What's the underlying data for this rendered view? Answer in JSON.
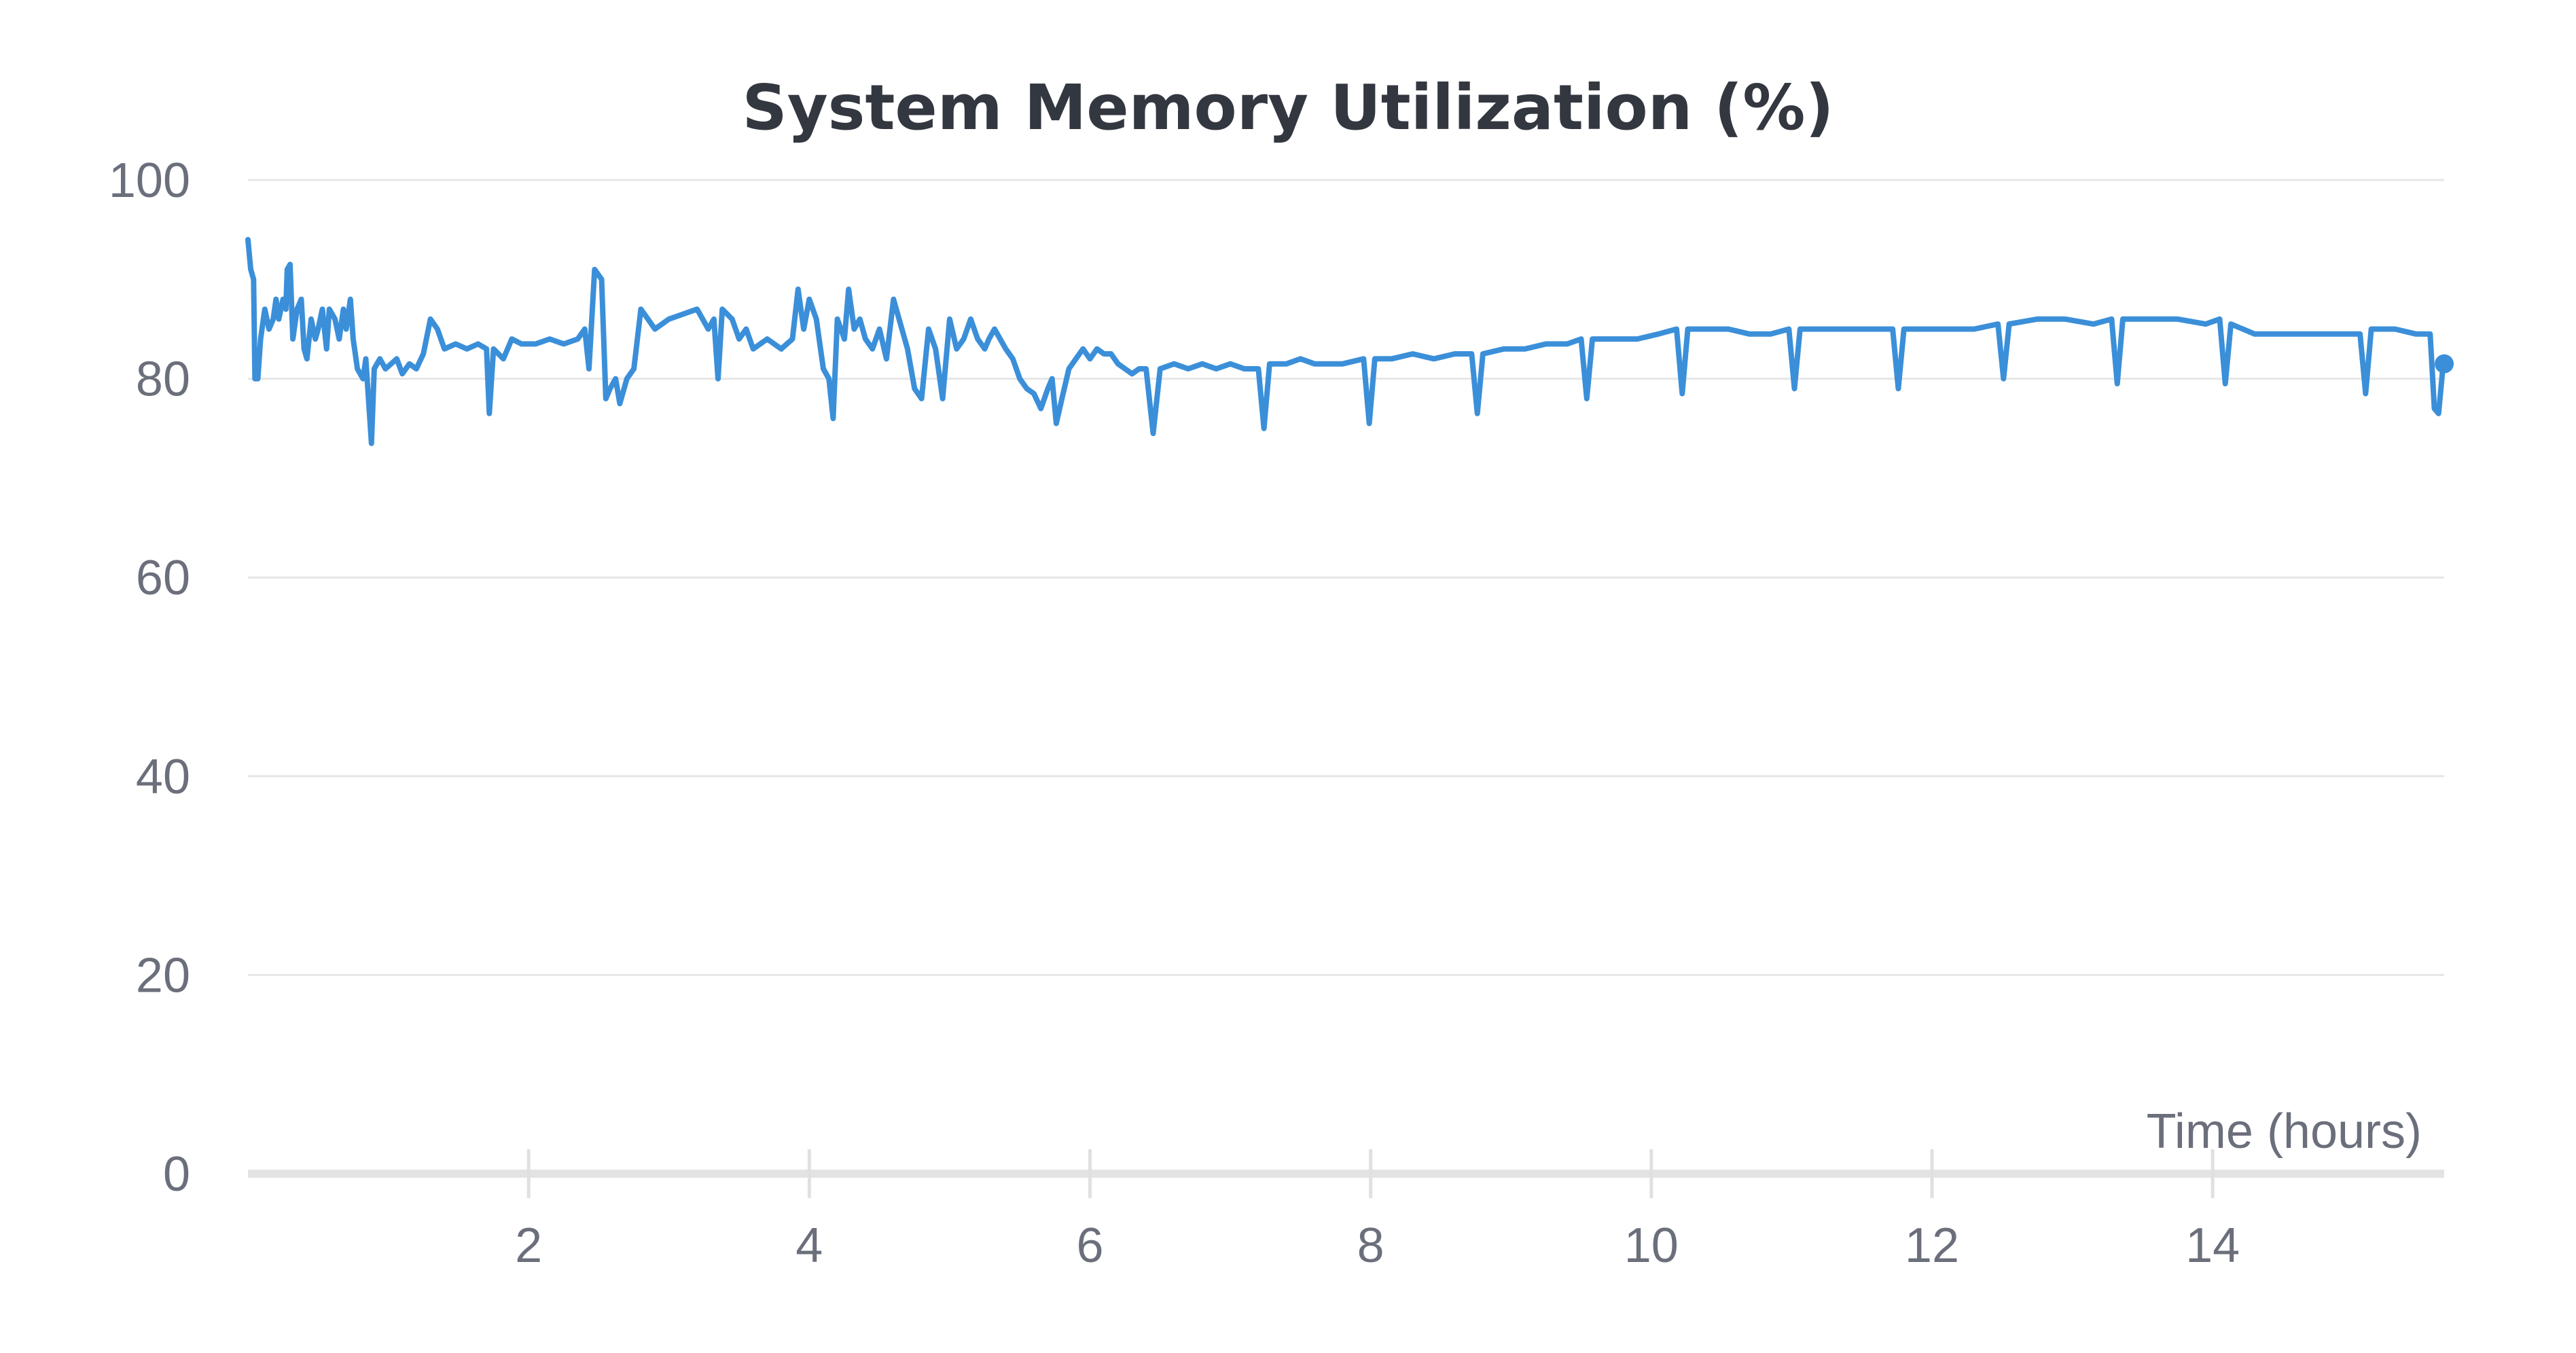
{
  "chart_data": {
    "type": "line",
    "title": "System Memory Utilization (%)",
    "xlabel": "Time (hours)",
    "ylabel": "",
    "xlim": [
      0,
      15.65
    ],
    "ylim": [
      0,
      100
    ],
    "x_ticks": [
      2,
      4,
      6,
      8,
      10,
      12,
      14
    ],
    "y_ticks": [
      0,
      20,
      40,
      60,
      80,
      100
    ],
    "grid": "horizontal",
    "legend": "none",
    "series": [
      {
        "color": "#3b8fd9",
        "points": [
          [
            0.0,
            94
          ],
          [
            0.02,
            91
          ],
          [
            0.04,
            90
          ],
          [
            0.05,
            80
          ],
          [
            0.07,
            80
          ],
          [
            0.09,
            84
          ],
          [
            0.12,
            87
          ],
          [
            0.15,
            85
          ],
          [
            0.18,
            86
          ],
          [
            0.2,
            88
          ],
          [
            0.22,
            86
          ],
          [
            0.25,
            88
          ],
          [
            0.27,
            87
          ],
          [
            0.28,
            91
          ],
          [
            0.3,
            91.5
          ],
          [
            0.32,
            84
          ],
          [
            0.35,
            87
          ],
          [
            0.38,
            88
          ],
          [
            0.4,
            83
          ],
          [
            0.42,
            82
          ],
          [
            0.45,
            86
          ],
          [
            0.48,
            84
          ],
          [
            0.5,
            85
          ],
          [
            0.53,
            87
          ],
          [
            0.56,
            83
          ],
          [
            0.58,
            87
          ],
          [
            0.62,
            86
          ],
          [
            0.65,
            84
          ],
          [
            0.68,
            87
          ],
          [
            0.7,
            85
          ],
          [
            0.73,
            88
          ],
          [
            0.75,
            84
          ],
          [
            0.78,
            81
          ],
          [
            0.82,
            80
          ],
          [
            0.84,
            82
          ],
          [
            0.88,
            73.5
          ],
          [
            0.9,
            81
          ],
          [
            0.94,
            82
          ],
          [
            0.98,
            81
          ],
          [
            1.02,
            81.5
          ],
          [
            1.06,
            82
          ],
          [
            1.1,
            80.5
          ],
          [
            1.15,
            81.5
          ],
          [
            1.2,
            81
          ],
          [
            1.25,
            82.5
          ],
          [
            1.3,
            86
          ],
          [
            1.35,
            85
          ],
          [
            1.4,
            83
          ],
          [
            1.48,
            83.5
          ],
          [
            1.56,
            83
          ],
          [
            1.64,
            83.5
          ],
          [
            1.7,
            83
          ],
          [
            1.72,
            76.5
          ],
          [
            1.75,
            83
          ],
          [
            1.82,
            82
          ],
          [
            1.88,
            84
          ],
          [
            1.95,
            83.5
          ],
          [
            2.05,
            83.5
          ],
          [
            2.15,
            84
          ],
          [
            2.25,
            83.5
          ],
          [
            2.35,
            84
          ],
          [
            2.4,
            85
          ],
          [
            2.43,
            81
          ],
          [
            2.47,
            91
          ],
          [
            2.52,
            90
          ],
          [
            2.55,
            78
          ],
          [
            2.58,
            79
          ],
          [
            2.62,
            80
          ],
          [
            2.65,
            77.5
          ],
          [
            2.7,
            80
          ],
          [
            2.75,
            81
          ],
          [
            2.8,
            87
          ],
          [
            2.85,
            86
          ],
          [
            2.9,
            85
          ],
          [
            3.0,
            86
          ],
          [
            3.1,
            86.5
          ],
          [
            3.2,
            87
          ],
          [
            3.28,
            85
          ],
          [
            3.32,
            86
          ],
          [
            3.35,
            80
          ],
          [
            3.38,
            87
          ],
          [
            3.45,
            86
          ],
          [
            3.5,
            84
          ],
          [
            3.55,
            85
          ],
          [
            3.6,
            83
          ],
          [
            3.7,
            84
          ],
          [
            3.8,
            83
          ],
          [
            3.88,
            84
          ],
          [
            3.92,
            89
          ],
          [
            3.96,
            85
          ],
          [
            4.0,
            88
          ],
          [
            4.05,
            86
          ],
          [
            4.1,
            81
          ],
          [
            4.14,
            80
          ],
          [
            4.17,
            76
          ],
          [
            4.2,
            86
          ],
          [
            4.25,
            84
          ],
          [
            4.28,
            89
          ],
          [
            4.32,
            85
          ],
          [
            4.36,
            86
          ],
          [
            4.4,
            84
          ],
          [
            4.45,
            83
          ],
          [
            4.5,
            85
          ],
          [
            4.55,
            82
          ],
          [
            4.6,
            88
          ],
          [
            4.64,
            86
          ],
          [
            4.7,
            83
          ],
          [
            4.75,
            79
          ],
          [
            4.8,
            78
          ],
          [
            4.85,
            85
          ],
          [
            4.9,
            83
          ],
          [
            4.95,
            78
          ],
          [
            5.0,
            86
          ],
          [
            5.05,
            83
          ],
          [
            5.1,
            84
          ],
          [
            5.15,
            86
          ],
          [
            5.2,
            84
          ],
          [
            5.25,
            83
          ],
          [
            5.28,
            84
          ],
          [
            5.32,
            85
          ],
          [
            5.36,
            84
          ],
          [
            5.4,
            83
          ],
          [
            5.45,
            82
          ],
          [
            5.5,
            80
          ],
          [
            5.55,
            79
          ],
          [
            5.6,
            78.5
          ],
          [
            5.65,
            77
          ],
          [
            5.7,
            79
          ],
          [
            5.73,
            80
          ],
          [
            5.76,
            75.5
          ],
          [
            5.8,
            78
          ],
          [
            5.85,
            81
          ],
          [
            5.9,
            82
          ],
          [
            5.95,
            83
          ],
          [
            6.0,
            82
          ],
          [
            6.05,
            83
          ],
          [
            6.1,
            82.5
          ],
          [
            6.15,
            82.5
          ],
          [
            6.2,
            81.5
          ],
          [
            6.25,
            81
          ],
          [
            6.3,
            80.5
          ],
          [
            6.35,
            81
          ],
          [
            6.4,
            81
          ],
          [
            6.45,
            74.5
          ],
          [
            6.5,
            81
          ],
          [
            6.6,
            81.5
          ],
          [
            6.7,
            81
          ],
          [
            6.8,
            81.5
          ],
          [
            6.9,
            81
          ],
          [
            7.0,
            81.5
          ],
          [
            7.1,
            81
          ],
          [
            7.2,
            81
          ],
          [
            7.24,
            75
          ],
          [
            7.28,
            81.5
          ],
          [
            7.4,
            81.5
          ],
          [
            7.5,
            82
          ],
          [
            7.6,
            81.5
          ],
          [
            7.7,
            81.5
          ],
          [
            7.8,
            81.5
          ],
          [
            7.95,
            82
          ],
          [
            7.99,
            75.5
          ],
          [
            8.03,
            82
          ],
          [
            8.15,
            82
          ],
          [
            8.3,
            82.5
          ],
          [
            8.45,
            82
          ],
          [
            8.6,
            82.5
          ],
          [
            8.72,
            82.5
          ],
          [
            8.76,
            76.5
          ],
          [
            8.8,
            82.5
          ],
          [
            8.95,
            83
          ],
          [
            9.1,
            83
          ],
          [
            9.25,
            83.5
          ],
          [
            9.4,
            83.5
          ],
          [
            9.5,
            84
          ],
          [
            9.54,
            78
          ],
          [
            9.58,
            84
          ],
          [
            9.75,
            84
          ],
          [
            9.9,
            84
          ],
          [
            10.05,
            84.5
          ],
          [
            10.18,
            85
          ],
          [
            10.22,
            78.5
          ],
          [
            10.26,
            85
          ],
          [
            10.4,
            85
          ],
          [
            10.55,
            85
          ],
          [
            10.7,
            84.5
          ],
          [
            10.85,
            84.5
          ],
          [
            10.98,
            85
          ],
          [
            11.02,
            79
          ],
          [
            11.06,
            85
          ],
          [
            11.25,
            85
          ],
          [
            11.45,
            85
          ],
          [
            11.6,
            85
          ],
          [
            11.72,
            85
          ],
          [
            11.76,
            79
          ],
          [
            11.8,
            85
          ],
          [
            12.0,
            85
          ],
          [
            12.15,
            85
          ],
          [
            12.3,
            85
          ],
          [
            12.47,
            85.5
          ],
          [
            12.51,
            80
          ],
          [
            12.55,
            85.5
          ],
          [
            12.75,
            86
          ],
          [
            12.95,
            86
          ],
          [
            13.15,
            85.5
          ],
          [
            13.28,
            86
          ],
          [
            13.32,
            79.5
          ],
          [
            13.36,
            86
          ],
          [
            13.55,
            86
          ],
          [
            13.75,
            86
          ],
          [
            13.95,
            85.5
          ],
          [
            14.05,
            86
          ],
          [
            14.09,
            79.5
          ],
          [
            14.13,
            85.5
          ],
          [
            14.3,
            84.5
          ],
          [
            14.5,
            84.5
          ],
          [
            14.7,
            84.5
          ],
          [
            14.9,
            84.5
          ],
          [
            15.05,
            84.5
          ],
          [
            15.09,
            78.5
          ],
          [
            15.13,
            85
          ],
          [
            15.3,
            85
          ],
          [
            15.45,
            84.5
          ],
          [
            15.55,
            84.5
          ],
          [
            15.58,
            77
          ],
          [
            15.61,
            76.5
          ],
          [
            15.64,
            81
          ],
          [
            15.65,
            81.5
          ]
        ],
        "last_marker": [
          15.65,
          81.5
        ]
      }
    ]
  }
}
